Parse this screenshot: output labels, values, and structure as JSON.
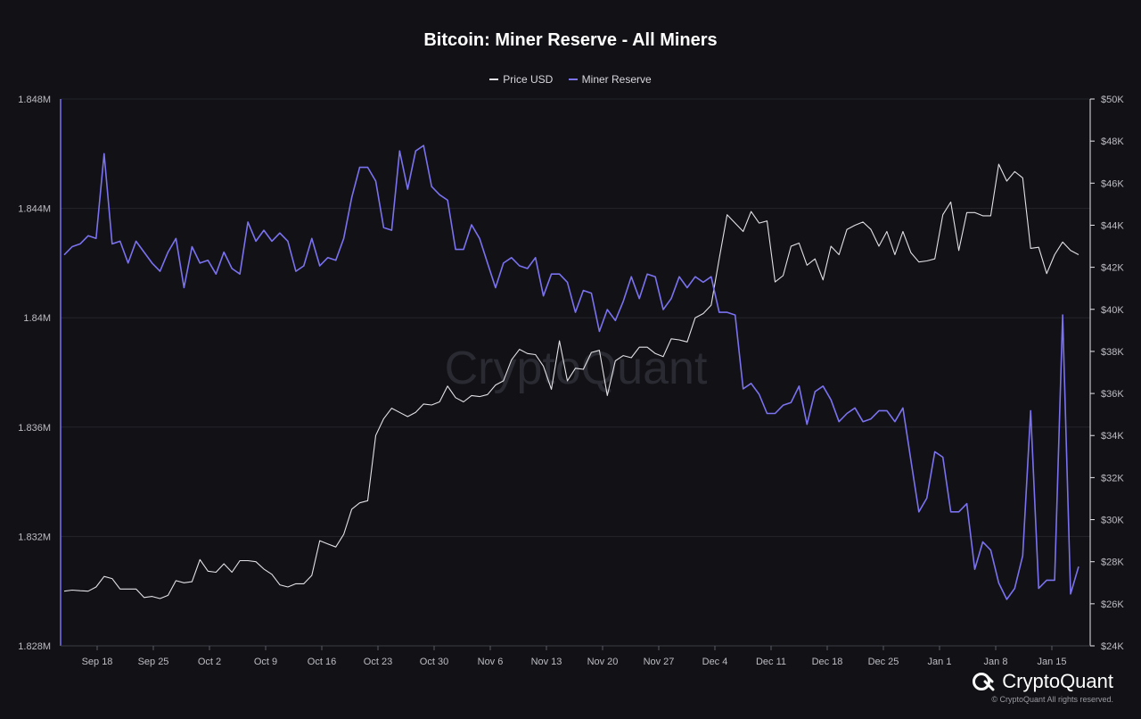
{
  "title": "Bitcoin: Miner Reserve - All Miners",
  "watermark": "CryptoQuant",
  "brand": {
    "name": "CryptoQuant",
    "copyright": "© CryptoQuant All rights reserved."
  },
  "colors": {
    "background": "#111116",
    "price": "#e2e2e6",
    "reserve": "#7b72f0",
    "grid": "#24242c"
  },
  "chart_data": {
    "type": "line",
    "title": "Bitcoin: Miner Reserve - All Miners",
    "legend_position": "top-center",
    "grid": true,
    "x_tick_labels": [
      "Sep 18",
      "Sep 25",
      "Oct 2",
      "Oct 9",
      "Oct 16",
      "Oct 23",
      "Oct 30",
      "Nov 6",
      "Nov 13",
      "Nov 20",
      "Nov 27",
      "Dec 4",
      "Dec 11",
      "Dec 18",
      "Dec 25",
      "Jan 1",
      "Jan 8",
      "Jan 15"
    ],
    "x_start": "Sep 13",
    "x_end": "Jan 17",
    "y_left": {
      "min": 1.828,
      "max": 1.848,
      "tick_labels": [
        "1.828M",
        "1.832M",
        "1.836M",
        "1.84M",
        "1.844M",
        "1.848M"
      ]
    },
    "y_right": {
      "min": 24000,
      "max": 50000,
      "tick_labels": [
        "$24K",
        "$26K",
        "$28K",
        "$30K",
        "$32K",
        "$34K",
        "$36K",
        "$38K",
        "$40K",
        "$42K",
        "$44K",
        "$46K",
        "$48K",
        "$50K"
      ]
    },
    "series": [
      {
        "name": "Price USD",
        "axis": "right",
        "values": [
          26600,
          26650,
          26620,
          26600,
          26800,
          27300,
          27200,
          26700,
          26700,
          26700,
          26300,
          26350,
          26250,
          26400,
          27100,
          27000,
          27050,
          28100,
          27550,
          27500,
          27900,
          27500,
          28050,
          28050,
          28000,
          27650,
          27400,
          26900,
          26800,
          26950,
          26950,
          27350,
          29000,
          28850,
          28700,
          29300,
          30500,
          30800,
          30900,
          34000,
          34800,
          35300,
          35100,
          34900,
          35100,
          35500,
          35450,
          35600,
          36350,
          35800,
          35600,
          35900,
          35850,
          35950,
          36400,
          36600,
          37600,
          38100,
          37900,
          37850,
          37300,
          36200,
          38500,
          36600,
          37200,
          37150,
          37950,
          38050,
          35900,
          37550,
          37800,
          37700,
          38200,
          38200,
          37900,
          37750,
          38600,
          38550,
          38450,
          39600,
          39800,
          40200,
          42400,
          44500,
          44100,
          43700,
          44650,
          44100,
          44200,
          41300,
          41600,
          43000,
          43150,
          42100,
          42400,
          41400,
          43000,
          42600,
          43800,
          44000,
          44150,
          43800,
          43000,
          43700,
          42600,
          43700,
          42700,
          42250,
          42300,
          42400,
          44500,
          45100,
          42800,
          44600,
          44600,
          44450,
          44450,
          46900,
          46100,
          46550,
          46250,
          42900,
          42950,
          41700,
          42600,
          43200,
          42800,
          42600
        ]
      },
      {
        "name": "Miner Reserve",
        "axis": "left",
        "values": [
          1.8423,
          1.8426,
          1.8427,
          1.843,
          1.8429,
          1.846,
          1.8427,
          1.8428,
          1.842,
          1.8428,
          1.8424,
          1.842,
          1.8417,
          1.8424,
          1.8429,
          1.8411,
          1.8426,
          1.842,
          1.8421,
          1.8416,
          1.8424,
          1.8418,
          1.8416,
          1.8435,
          1.8428,
          1.8432,
          1.8428,
          1.8431,
          1.8428,
          1.8417,
          1.8419,
          1.8429,
          1.8419,
          1.8422,
          1.8421,
          1.8429,
          1.8444,
          1.8455,
          1.8455,
          1.845,
          1.8433,
          1.8432,
          1.8461,
          1.8447,
          1.8461,
          1.8463,
          1.8448,
          1.8445,
          1.8443,
          1.8425,
          1.8425,
          1.8434,
          1.8429,
          1.842,
          1.8411,
          1.842,
          1.8422,
          1.8419,
          1.8418,
          1.8422,
          1.8408,
          1.8416,
          1.8416,
          1.8413,
          1.8402,
          1.841,
          1.8409,
          1.8395,
          1.8403,
          1.8399,
          1.8406,
          1.8415,
          1.8407,
          1.8416,
          1.8415,
          1.8403,
          1.8407,
          1.8415,
          1.8411,
          1.8415,
          1.8413,
          1.8415,
          1.8402,
          1.8402,
          1.8401,
          1.8374,
          1.8376,
          1.8372,
          1.8365,
          1.8365,
          1.8368,
          1.8369,
          1.8375,
          1.8361,
          1.8373,
          1.8375,
          1.837,
          1.8362,
          1.8365,
          1.8367,
          1.8362,
          1.8363,
          1.8366,
          1.8366,
          1.8362,
          1.8367,
          1.8348,
          1.8329,
          1.8334,
          1.8351,
          1.8349,
          1.8329,
          1.8329,
          1.8332,
          1.8308,
          1.8318,
          1.8315,
          1.8303,
          1.8297,
          1.8301,
          1.8313,
          1.8366,
          1.8301,
          1.8304,
          1.8304,
          1.8401,
          1.8299,
          1.8309
        ]
      }
    ]
  }
}
